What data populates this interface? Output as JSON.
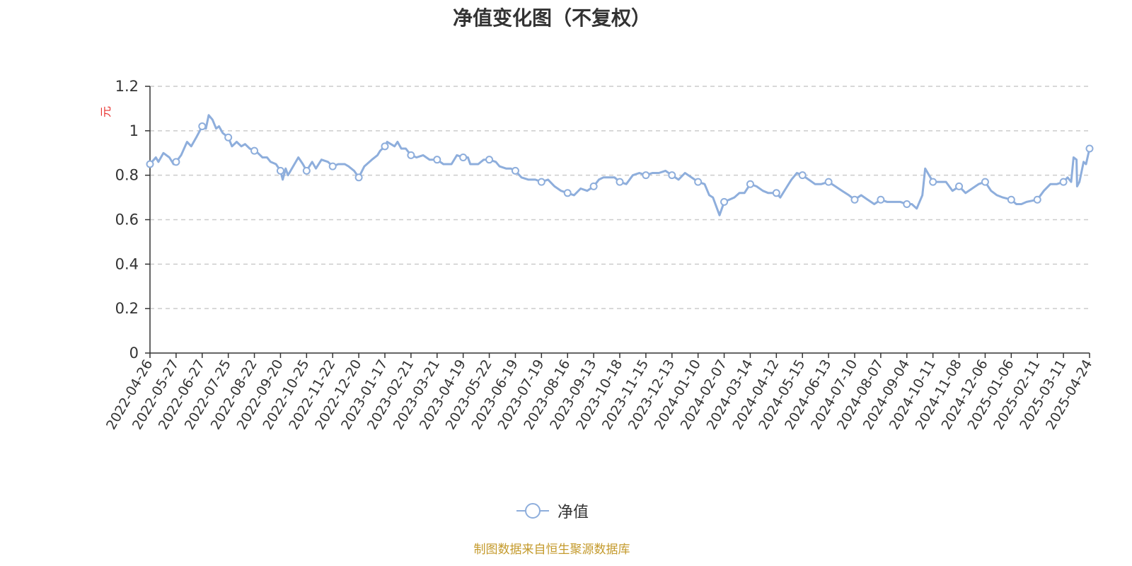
{
  "title": "净值变化图（不复权）",
  "legend_label": "净值",
  "source_note": "制图数据来自恒生聚源数据库",
  "colors": {
    "line": "#8eaedc",
    "grid": "#cccccc",
    "axis": "#333333",
    "unit": "#e8322f",
    "source": "#c49a2c"
  },
  "chart_data": {
    "type": "line",
    "title": "净值变化图（不复权）",
    "ylabel": "元",
    "ylim": [
      0,
      1.2
    ],
    "y_ticks": [
      0,
      0.2,
      0.4,
      0.6,
      0.8,
      1,
      1.2
    ],
    "y_tick_labels": [
      "0",
      "0.2",
      "0.4",
      "0.6",
      "0.8",
      "1",
      "1.2"
    ],
    "grid": true,
    "legend_position": "bottom-center",
    "x_tick_labels": [
      "2022-04-26",
      "2022-05-27",
      "2022-06-27",
      "2022-07-25",
      "2022-08-22",
      "2022-09-20",
      "2022-10-25",
      "2022-11-22",
      "2022-12-20",
      "2023-01-17",
      "2023-02-21",
      "2023-03-21",
      "2023-04-19",
      "2023-05-22",
      "2023-06-19",
      "2023-07-19",
      "2023-08-16",
      "2023-09-13",
      "2023-10-18",
      "2023-11-15",
      "2023-12-13",
      "2024-01-10",
      "2024-02-07",
      "2024-03-14",
      "2024-04-12",
      "2024-05-15",
      "2024-06-13",
      "2024-07-10",
      "2024-08-07",
      "2024-09-04",
      "2024-10-11",
      "2024-11-08",
      "2024-12-06",
      "2025-01-06",
      "2025-02-11",
      "2025-03-11",
      "2025-04-24"
    ],
    "series": [
      {
        "name": "净值",
        "values": [
          [
            "2022-04-26",
            0.85
          ],
          [
            "2022-05-03",
            0.88
          ],
          [
            "2022-05-06",
            0.86
          ],
          [
            "2022-05-12",
            0.9
          ],
          [
            "2022-05-19",
            0.88
          ],
          [
            "2022-05-24",
            0.85
          ],
          [
            "2022-05-27",
            0.86
          ],
          [
            "2022-06-02",
            0.89
          ],
          [
            "2022-06-09",
            0.95
          ],
          [
            "2022-06-14",
            0.93
          ],
          [
            "2022-06-20",
            0.97
          ],
          [
            "2022-06-27",
            1.02
          ],
          [
            "2022-07-01",
            1.01
          ],
          [
            "2022-07-04",
            1.07
          ],
          [
            "2022-07-08",
            1.05
          ],
          [
            "2022-07-12",
            1.01
          ],
          [
            "2022-07-15",
            1.02
          ],
          [
            "2022-07-19",
            0.99
          ],
          [
            "2022-07-25",
            0.97
          ],
          [
            "2022-07-29",
            0.93
          ],
          [
            "2022-08-03",
            0.95
          ],
          [
            "2022-08-08",
            0.93
          ],
          [
            "2022-08-12",
            0.94
          ],
          [
            "2022-08-17",
            0.92
          ],
          [
            "2022-08-22",
            0.91
          ],
          [
            "2022-08-26",
            0.9
          ],
          [
            "2022-08-31",
            0.88
          ],
          [
            "2022-09-05",
            0.88
          ],
          [
            "2022-09-09",
            0.86
          ],
          [
            "2022-09-15",
            0.85
          ],
          [
            "2022-09-20",
            0.82
          ],
          [
            "2022-09-23",
            0.78
          ],
          [
            "2022-09-27",
            0.83
          ],
          [
            "2022-09-30",
            0.8
          ],
          [
            "2022-10-14",
            0.88
          ],
          [
            "2022-10-20",
            0.85
          ],
          [
            "2022-10-25",
            0.82
          ],
          [
            "2022-10-31",
            0.86
          ],
          [
            "2022-11-04",
            0.83
          ],
          [
            "2022-11-10",
            0.87
          ],
          [
            "2022-11-17",
            0.86
          ],
          [
            "2022-11-22",
            0.84
          ],
          [
            "2022-11-28",
            0.85
          ],
          [
            "2022-12-05",
            0.85
          ],
          [
            "2022-12-09",
            0.84
          ],
          [
            "2022-12-15",
            0.82
          ],
          [
            "2022-12-20",
            0.79
          ],
          [
            "2022-12-26",
            0.84
          ],
          [
            "2023-01-03",
            0.87
          ],
          [
            "2023-01-09",
            0.89
          ],
          [
            "2023-01-12",
            0.91
          ],
          [
            "2023-01-17",
            0.93
          ],
          [
            "2023-01-20",
            0.95
          ],
          [
            "2023-01-30",
            0.93
          ],
          [
            "2023-02-03",
            0.95
          ],
          [
            "2023-02-08",
            0.92
          ],
          [
            "2023-02-14",
            0.92
          ],
          [
            "2023-02-21",
            0.89
          ],
          [
            "2023-02-27",
            0.88
          ],
          [
            "2023-03-06",
            0.89
          ],
          [
            "2023-03-13",
            0.87
          ],
          [
            "2023-03-21",
            0.87
          ],
          [
            "2023-03-28",
            0.85
          ],
          [
            "2023-04-06",
            0.85
          ],
          [
            "2023-04-12",
            0.89
          ],
          [
            "2023-04-19",
            0.88
          ],
          [
            "2023-04-25",
            0.88
          ],
          [
            "2023-04-28",
            0.85
          ],
          [
            "2023-05-08",
            0.85
          ],
          [
            "2023-05-15",
            0.87
          ],
          [
            "2023-05-22",
            0.87
          ],
          [
            "2023-05-29",
            0.86
          ],
          [
            "2023-06-02",
            0.84
          ],
          [
            "2023-06-09",
            0.83
          ],
          [
            "2023-06-14",
            0.83
          ],
          [
            "2023-06-19",
            0.82
          ],
          [
            "2023-06-26",
            0.79
          ],
          [
            "2023-07-04",
            0.78
          ],
          [
            "2023-07-12",
            0.78
          ],
          [
            "2023-07-19",
            0.77
          ],
          [
            "2023-07-26",
            0.78
          ],
          [
            "2023-08-02",
            0.75
          ],
          [
            "2023-08-09",
            0.73
          ],
          [
            "2023-08-16",
            0.72
          ],
          [
            "2023-08-23",
            0.71
          ],
          [
            "2023-08-30",
            0.74
          ],
          [
            "2023-09-06",
            0.73
          ],
          [
            "2023-09-13",
            0.75
          ],
          [
            "2023-09-20",
            0.78
          ],
          [
            "2023-09-26",
            0.79
          ],
          [
            "2023-10-11",
            0.79
          ],
          [
            "2023-10-18",
            0.77
          ],
          [
            "2023-10-25",
            0.76
          ],
          [
            "2023-11-01",
            0.8
          ],
          [
            "2023-11-08",
            0.81
          ],
          [
            "2023-11-15",
            0.8
          ],
          [
            "2023-11-22",
            0.81
          ],
          [
            "2023-11-29",
            0.81
          ],
          [
            "2023-12-06",
            0.82
          ],
          [
            "2023-12-13",
            0.8
          ],
          [
            "2023-12-20",
            0.78
          ],
          [
            "2023-12-27",
            0.81
          ],
          [
            "2024-01-03",
            0.79
          ],
          [
            "2024-01-10",
            0.77
          ],
          [
            "2024-01-17",
            0.76
          ],
          [
            "2024-01-22",
            0.71
          ],
          [
            "2024-01-26",
            0.7
          ],
          [
            "2024-02-02",
            0.62
          ],
          [
            "2024-02-07",
            0.68
          ],
          [
            "2024-02-21",
            0.7
          ],
          [
            "2024-02-28",
            0.72
          ],
          [
            "2024-03-06",
            0.72
          ],
          [
            "2024-03-14",
            0.76
          ],
          [
            "2024-03-21",
            0.75
          ],
          [
            "2024-03-28",
            0.73
          ],
          [
            "2024-04-03",
            0.72
          ],
          [
            "2024-04-12",
            0.72
          ],
          [
            "2024-04-17",
            0.7
          ],
          [
            "2024-04-24",
            0.74
          ],
          [
            "2024-05-01",
            0.78
          ],
          [
            "2024-05-08",
            0.81
          ],
          [
            "2024-05-15",
            0.8
          ],
          [
            "2024-05-22",
            0.78
          ],
          [
            "2024-05-29",
            0.76
          ],
          [
            "2024-06-05",
            0.76
          ],
          [
            "2024-06-13",
            0.77
          ],
          [
            "2024-06-20",
            0.75
          ],
          [
            "2024-06-27",
            0.73
          ],
          [
            "2024-07-04",
            0.71
          ],
          [
            "2024-07-10",
            0.69
          ],
          [
            "2024-07-17",
            0.71
          ],
          [
            "2024-07-24",
            0.69
          ],
          [
            "2024-07-31",
            0.67
          ],
          [
            "2024-08-07",
            0.69
          ],
          [
            "2024-08-14",
            0.68
          ],
          [
            "2024-08-21",
            0.68
          ],
          [
            "2024-08-28",
            0.68
          ],
          [
            "2024-09-04",
            0.67
          ],
          [
            "2024-09-11",
            0.67
          ],
          [
            "2024-09-18",
            0.65
          ],
          [
            "2024-09-26",
            0.71
          ],
          [
            "2024-09-30",
            0.83
          ],
          [
            "2024-10-11",
            0.77
          ],
          [
            "2024-10-18",
            0.77
          ],
          [
            "2024-10-25",
            0.77
          ],
          [
            "2024-11-01",
            0.73
          ],
          [
            "2024-11-08",
            0.75
          ],
          [
            "2024-11-15",
            0.72
          ],
          [
            "2024-11-22",
            0.74
          ],
          [
            "2024-11-29",
            0.76
          ],
          [
            "2024-12-06",
            0.77
          ],
          [
            "2024-12-13",
            0.73
          ],
          [
            "2024-12-20",
            0.71
          ],
          [
            "2024-12-27",
            0.7
          ],
          [
            "2025-01-06",
            0.69
          ],
          [
            "2025-01-13",
            0.67
          ],
          [
            "2025-01-20",
            0.67
          ],
          [
            "2025-01-27",
            0.68
          ],
          [
            "2025-02-11",
            0.69
          ],
          [
            "2025-02-18",
            0.73
          ],
          [
            "2025-02-25",
            0.76
          ],
          [
            "2025-03-04",
            0.76
          ],
          [
            "2025-03-11",
            0.77
          ],
          [
            "2025-03-18",
            0.79
          ],
          [
            "2025-03-24",
            0.77
          ],
          [
            "2025-03-28",
            0.88
          ],
          [
            "2025-04-02",
            0.87
          ],
          [
            "2025-04-03",
            0.75
          ],
          [
            "2025-04-07",
            0.77
          ],
          [
            "2025-04-14",
            0.86
          ],
          [
            "2025-04-18",
            0.85
          ],
          [
            "2025-04-24",
            0.92
          ]
        ]
      }
    ]
  }
}
